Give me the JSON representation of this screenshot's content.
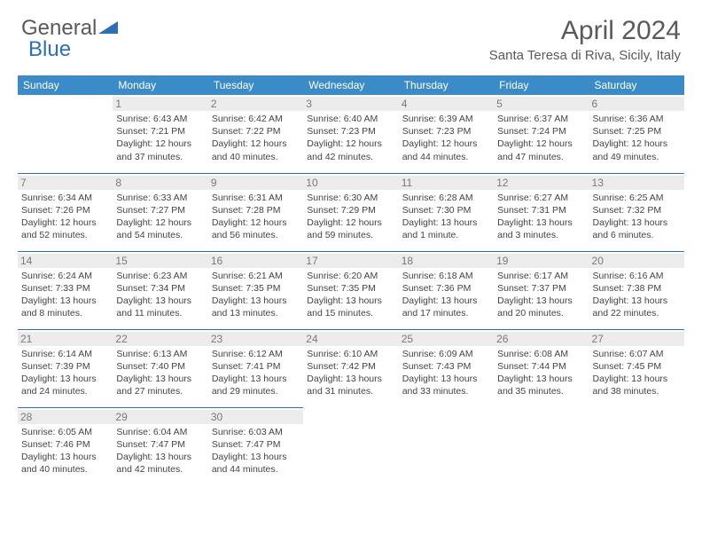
{
  "logo": {
    "part1": "General",
    "part2": "Blue"
  },
  "title": "April 2024",
  "location": "Santa Teresa di Riva, Sicily, Italy",
  "colors": {
    "header_bg": "#3b8bc9",
    "border": "#2d6fb5",
    "daynum_bg": "#ececec",
    "text": "#444444",
    "title_text": "#5a5a5a"
  },
  "day_headers": [
    "Sunday",
    "Monday",
    "Tuesday",
    "Wednesday",
    "Thursday",
    "Friday",
    "Saturday"
  ],
  "weeks": [
    [
      null,
      {
        "n": "1",
        "sr": "Sunrise: 6:43 AM",
        "ss": "Sunset: 7:21 PM",
        "d1": "Daylight: 12 hours",
        "d2": "and 37 minutes."
      },
      {
        "n": "2",
        "sr": "Sunrise: 6:42 AM",
        "ss": "Sunset: 7:22 PM",
        "d1": "Daylight: 12 hours",
        "d2": "and 40 minutes."
      },
      {
        "n": "3",
        "sr": "Sunrise: 6:40 AM",
        "ss": "Sunset: 7:23 PM",
        "d1": "Daylight: 12 hours",
        "d2": "and 42 minutes."
      },
      {
        "n": "4",
        "sr": "Sunrise: 6:39 AM",
        "ss": "Sunset: 7:23 PM",
        "d1": "Daylight: 12 hours",
        "d2": "and 44 minutes."
      },
      {
        "n": "5",
        "sr": "Sunrise: 6:37 AM",
        "ss": "Sunset: 7:24 PM",
        "d1": "Daylight: 12 hours",
        "d2": "and 47 minutes."
      },
      {
        "n": "6",
        "sr": "Sunrise: 6:36 AM",
        "ss": "Sunset: 7:25 PM",
        "d1": "Daylight: 12 hours",
        "d2": "and 49 minutes."
      }
    ],
    [
      {
        "n": "7",
        "sr": "Sunrise: 6:34 AM",
        "ss": "Sunset: 7:26 PM",
        "d1": "Daylight: 12 hours",
        "d2": "and 52 minutes."
      },
      {
        "n": "8",
        "sr": "Sunrise: 6:33 AM",
        "ss": "Sunset: 7:27 PM",
        "d1": "Daylight: 12 hours",
        "d2": "and 54 minutes."
      },
      {
        "n": "9",
        "sr": "Sunrise: 6:31 AM",
        "ss": "Sunset: 7:28 PM",
        "d1": "Daylight: 12 hours",
        "d2": "and 56 minutes."
      },
      {
        "n": "10",
        "sr": "Sunrise: 6:30 AM",
        "ss": "Sunset: 7:29 PM",
        "d1": "Daylight: 12 hours",
        "d2": "and 59 minutes."
      },
      {
        "n": "11",
        "sr": "Sunrise: 6:28 AM",
        "ss": "Sunset: 7:30 PM",
        "d1": "Daylight: 13 hours",
        "d2": "and 1 minute."
      },
      {
        "n": "12",
        "sr": "Sunrise: 6:27 AM",
        "ss": "Sunset: 7:31 PM",
        "d1": "Daylight: 13 hours",
        "d2": "and 3 minutes."
      },
      {
        "n": "13",
        "sr": "Sunrise: 6:25 AM",
        "ss": "Sunset: 7:32 PM",
        "d1": "Daylight: 13 hours",
        "d2": "and 6 minutes."
      }
    ],
    [
      {
        "n": "14",
        "sr": "Sunrise: 6:24 AM",
        "ss": "Sunset: 7:33 PM",
        "d1": "Daylight: 13 hours",
        "d2": "and 8 minutes."
      },
      {
        "n": "15",
        "sr": "Sunrise: 6:23 AM",
        "ss": "Sunset: 7:34 PM",
        "d1": "Daylight: 13 hours",
        "d2": "and 11 minutes."
      },
      {
        "n": "16",
        "sr": "Sunrise: 6:21 AM",
        "ss": "Sunset: 7:35 PM",
        "d1": "Daylight: 13 hours",
        "d2": "and 13 minutes."
      },
      {
        "n": "17",
        "sr": "Sunrise: 6:20 AM",
        "ss": "Sunset: 7:35 PM",
        "d1": "Daylight: 13 hours",
        "d2": "and 15 minutes."
      },
      {
        "n": "18",
        "sr": "Sunrise: 6:18 AM",
        "ss": "Sunset: 7:36 PM",
        "d1": "Daylight: 13 hours",
        "d2": "and 17 minutes."
      },
      {
        "n": "19",
        "sr": "Sunrise: 6:17 AM",
        "ss": "Sunset: 7:37 PM",
        "d1": "Daylight: 13 hours",
        "d2": "and 20 minutes."
      },
      {
        "n": "20",
        "sr": "Sunrise: 6:16 AM",
        "ss": "Sunset: 7:38 PM",
        "d1": "Daylight: 13 hours",
        "d2": "and 22 minutes."
      }
    ],
    [
      {
        "n": "21",
        "sr": "Sunrise: 6:14 AM",
        "ss": "Sunset: 7:39 PM",
        "d1": "Daylight: 13 hours",
        "d2": "and 24 minutes."
      },
      {
        "n": "22",
        "sr": "Sunrise: 6:13 AM",
        "ss": "Sunset: 7:40 PM",
        "d1": "Daylight: 13 hours",
        "d2": "and 27 minutes."
      },
      {
        "n": "23",
        "sr": "Sunrise: 6:12 AM",
        "ss": "Sunset: 7:41 PM",
        "d1": "Daylight: 13 hours",
        "d2": "and 29 minutes."
      },
      {
        "n": "24",
        "sr": "Sunrise: 6:10 AM",
        "ss": "Sunset: 7:42 PM",
        "d1": "Daylight: 13 hours",
        "d2": "and 31 minutes."
      },
      {
        "n": "25",
        "sr": "Sunrise: 6:09 AM",
        "ss": "Sunset: 7:43 PM",
        "d1": "Daylight: 13 hours",
        "d2": "and 33 minutes."
      },
      {
        "n": "26",
        "sr": "Sunrise: 6:08 AM",
        "ss": "Sunset: 7:44 PM",
        "d1": "Daylight: 13 hours",
        "d2": "and 35 minutes."
      },
      {
        "n": "27",
        "sr": "Sunrise: 6:07 AM",
        "ss": "Sunset: 7:45 PM",
        "d1": "Daylight: 13 hours",
        "d2": "and 38 minutes."
      }
    ],
    [
      {
        "n": "28",
        "sr": "Sunrise: 6:05 AM",
        "ss": "Sunset: 7:46 PM",
        "d1": "Daylight: 13 hours",
        "d2": "and 40 minutes."
      },
      {
        "n": "29",
        "sr": "Sunrise: 6:04 AM",
        "ss": "Sunset: 7:47 PM",
        "d1": "Daylight: 13 hours",
        "d2": "and 42 minutes."
      },
      {
        "n": "30",
        "sr": "Sunrise: 6:03 AM",
        "ss": "Sunset: 7:47 PM",
        "d1": "Daylight: 13 hours",
        "d2": "and 44 minutes."
      },
      null,
      null,
      null,
      null
    ]
  ]
}
